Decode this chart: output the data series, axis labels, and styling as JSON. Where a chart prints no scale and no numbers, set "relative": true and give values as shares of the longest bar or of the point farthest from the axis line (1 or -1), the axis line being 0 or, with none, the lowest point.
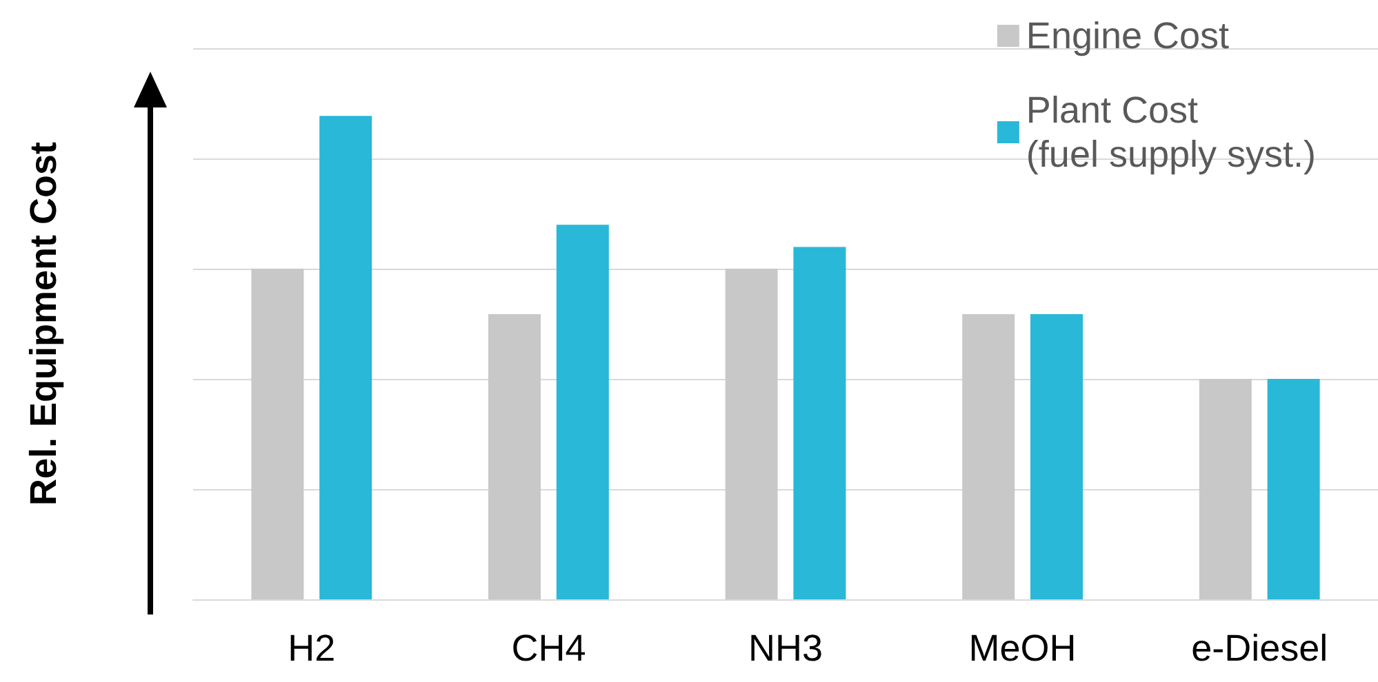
{
  "chart_data": {
    "type": "bar",
    "ylabel": "Rel. Equipment Cost",
    "categories": [
      "H2",
      "CH4",
      "NH3",
      "MeOH",
      "e-Diesel"
    ],
    "series": [
      {
        "name": "Engine Cost",
        "color": "#c8c8c8",
        "values": [
          0.684,
          0.59,
          0.684,
          0.59,
          0.456
        ]
      },
      {
        "name": "Plant Cost\n(fuel supply syst.)",
        "color": "#29b8d8",
        "values": [
          1,
          0.775,
          0.729,
          0.59,
          0.456
        ]
      }
    ],
    "relative": true,
    "grid": "y",
    "legend": "top right"
  }
}
